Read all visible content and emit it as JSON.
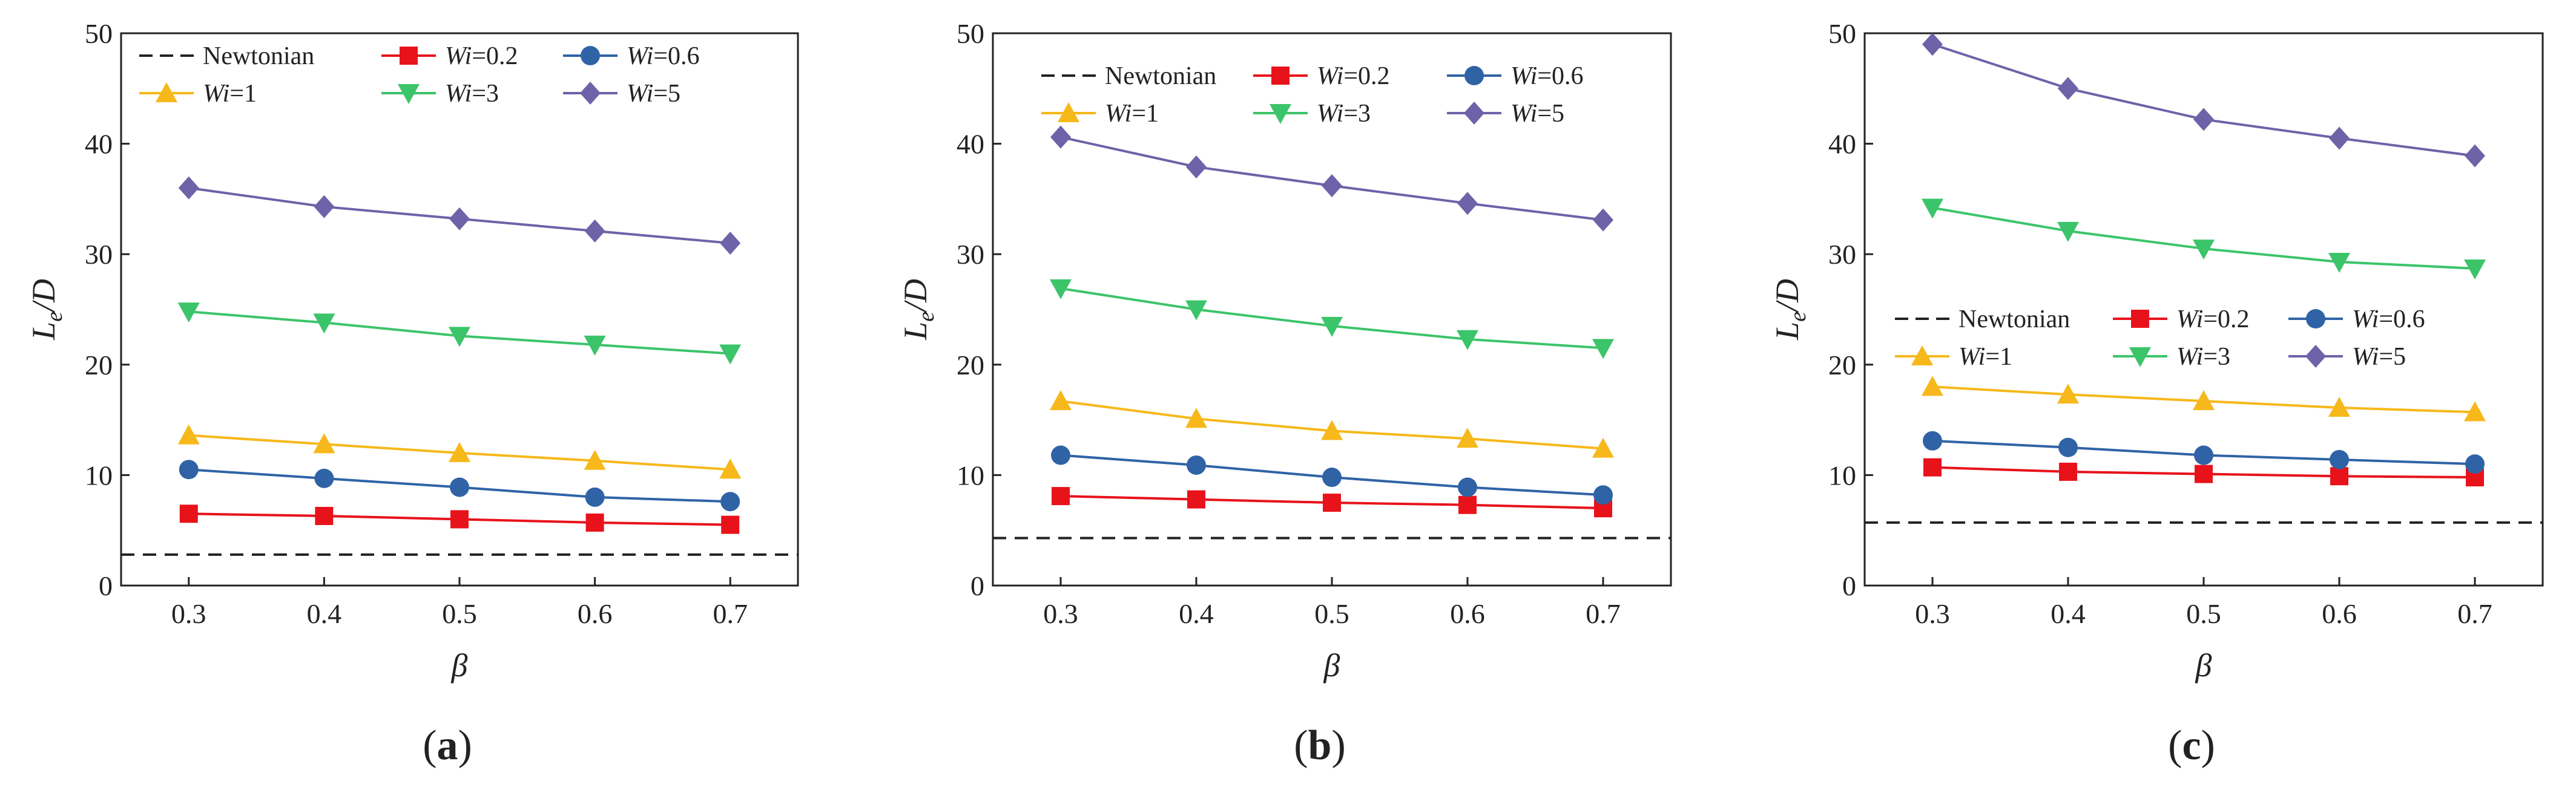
{
  "figure": {
    "panels_caption": [
      "(a)",
      "(b)",
      "(c)"
    ]
  },
  "colors": {
    "Newtonian": "#222222",
    "Wi=0.2": "#e8121b",
    "Wi=0.6": "#2f63a6",
    "Wi=1": "#f7b81b",
    "Wi=3": "#3cc46a",
    "Wi=5": "#6e62a8"
  },
  "chart_data": [
    {
      "type": "line",
      "panel_label": "(a)",
      "xlabel": "β",
      "ylabel": "Le/D",
      "xlim": [
        0.25,
        0.75
      ],
      "ylim": [
        0,
        50
      ],
      "xticks": [
        0.3,
        0.4,
        0.5,
        0.6,
        0.7
      ],
      "yticks": [
        0,
        10,
        20,
        30,
        40,
        50
      ],
      "legend_position": "top",
      "x": [
        0.3,
        0.4,
        0.5,
        0.6,
        0.7
      ],
      "series": [
        {
          "name": "Newtonian",
          "label_prefix": "Newtonian",
          "label_suffix": "",
          "style": "dashed",
          "marker": "none",
          "values": [
            2.8,
            2.8,
            2.8,
            2.8,
            2.8
          ]
        },
        {
          "name": "Wi=0.2",
          "label_prefix": "Wi",
          "label_suffix": "=0.2",
          "style": "solid",
          "marker": "square",
          "values": [
            6.5,
            6.3,
            6.0,
            5.7,
            5.5
          ]
        },
        {
          "name": "Wi=0.6",
          "label_prefix": "Wi",
          "label_suffix": "=0.6",
          "style": "solid",
          "marker": "circle",
          "values": [
            10.5,
            9.7,
            8.9,
            8.0,
            7.6
          ]
        },
        {
          "name": "Wi=1",
          "label_prefix": "Wi",
          "label_suffix": "=1",
          "style": "solid",
          "marker": "triangle-up",
          "values": [
            13.6,
            12.8,
            12.0,
            11.3,
            10.5
          ]
        },
        {
          "name": "Wi=3",
          "label_prefix": "Wi",
          "label_suffix": "=3",
          "style": "solid",
          "marker": "triangle-down",
          "values": [
            24.8,
            23.8,
            22.6,
            21.8,
            21.0
          ]
        },
        {
          "name": "Wi=5",
          "label_prefix": "Wi",
          "label_suffix": "=5",
          "style": "solid",
          "marker": "diamond",
          "values": [
            36.0,
            34.3,
            33.2,
            32.1,
            31.0
          ]
        }
      ]
    },
    {
      "type": "line",
      "panel_label": "(b)",
      "xlabel": "β",
      "ylabel": "Le/D",
      "xlim": [
        0.25,
        0.75
      ],
      "ylim": [
        0,
        50
      ],
      "xticks": [
        0.3,
        0.4,
        0.5,
        0.6,
        0.7
      ],
      "yticks": [
        0,
        10,
        20,
        30,
        40,
        50
      ],
      "legend_position": "top",
      "x": [
        0.3,
        0.4,
        0.5,
        0.6,
        0.7
      ],
      "series": [
        {
          "name": "Newtonian",
          "label_prefix": "Newtonian",
          "label_suffix": "",
          "style": "dashed",
          "marker": "none",
          "values": [
            4.3,
            4.3,
            4.3,
            4.3,
            4.3
          ]
        },
        {
          "name": "Wi=0.2",
          "label_prefix": "Wi",
          "label_suffix": "=0.2",
          "style": "solid",
          "marker": "square",
          "values": [
            8.1,
            7.8,
            7.5,
            7.3,
            7.0
          ]
        },
        {
          "name": "Wi=0.6",
          "label_prefix": "Wi",
          "label_suffix": "=0.6",
          "style": "solid",
          "marker": "circle",
          "values": [
            11.8,
            10.9,
            9.8,
            8.9,
            8.2
          ]
        },
        {
          "name": "Wi=1",
          "label_prefix": "Wi",
          "label_suffix": "=1",
          "style": "solid",
          "marker": "triangle-up",
          "values": [
            16.7,
            15.1,
            14.0,
            13.3,
            12.4
          ]
        },
        {
          "name": "Wi=3",
          "label_prefix": "Wi",
          "label_suffix": "=3",
          "style": "solid",
          "marker": "triangle-down",
          "values": [
            26.9,
            25.0,
            23.5,
            22.3,
            21.5
          ]
        },
        {
          "name": "Wi=5",
          "label_prefix": "Wi",
          "label_suffix": "=5",
          "style": "solid",
          "marker": "diamond",
          "values": [
            40.6,
            37.9,
            36.2,
            34.6,
            33.1
          ]
        }
      ]
    },
    {
      "type": "line",
      "panel_label": "(c)",
      "xlabel": "β",
      "ylabel": "Le/D",
      "xlim": [
        0.25,
        0.75
      ],
      "ylim": [
        0,
        50
      ],
      "xticks": [
        0.3,
        0.4,
        0.5,
        0.6,
        0.7
      ],
      "yticks": [
        0,
        10,
        20,
        30,
        40,
        50
      ],
      "legend_position": "middle",
      "x": [
        0.3,
        0.4,
        0.5,
        0.6,
        0.7
      ],
      "series": [
        {
          "name": "Newtonian",
          "label_prefix": "Newtonian",
          "label_suffix": "",
          "style": "dashed",
          "marker": "none",
          "values": [
            5.7,
            5.7,
            5.7,
            5.7,
            5.7
          ]
        },
        {
          "name": "Wi=0.2",
          "label_prefix": "Wi",
          "label_suffix": "=0.2",
          "style": "solid",
          "marker": "square",
          "values": [
            10.7,
            10.3,
            10.1,
            9.9,
            9.8
          ]
        },
        {
          "name": "Wi=0.6",
          "label_prefix": "Wi",
          "label_suffix": "=0.6",
          "style": "solid",
          "marker": "circle",
          "values": [
            13.1,
            12.5,
            11.8,
            11.4,
            11.0
          ]
        },
        {
          "name": "Wi=1",
          "label_prefix": "Wi",
          "label_suffix": "=1",
          "style": "solid",
          "marker": "triangle-up",
          "values": [
            18.0,
            17.3,
            16.7,
            16.1,
            15.7
          ]
        },
        {
          "name": "Wi=3",
          "label_prefix": "Wi",
          "label_suffix": "=3",
          "style": "solid",
          "marker": "triangle-down",
          "values": [
            34.2,
            32.1,
            30.5,
            29.3,
            28.7
          ]
        },
        {
          "name": "Wi=5",
          "label_prefix": "Wi",
          "label_suffix": "=5",
          "style": "solid",
          "marker": "diamond",
          "values": [
            49.0,
            45.0,
            42.2,
            40.5,
            38.9
          ]
        }
      ]
    }
  ]
}
